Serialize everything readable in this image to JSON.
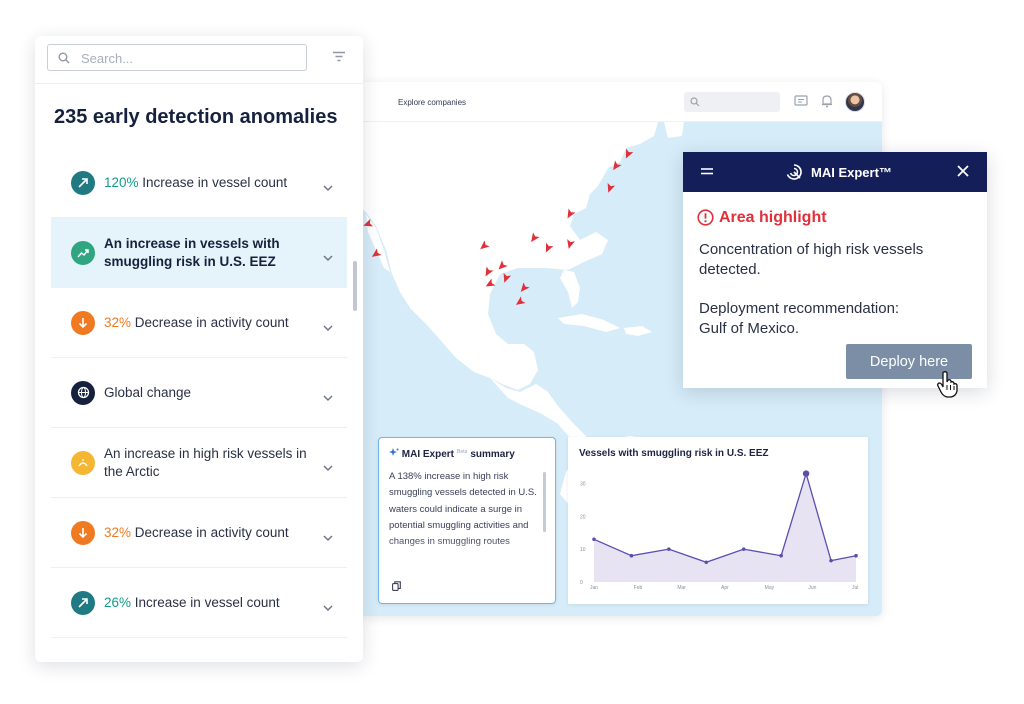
{
  "dashboard": {
    "nav_link": "Explore companies",
    "search_placeholder": ""
  },
  "panel": {
    "search_placeholder": "Search...",
    "title": "235 early detection anomalies",
    "items": [
      {
        "pct": "120%",
        "text": " Increase in vessel count",
        "pct_color": "green",
        "icon": "trend-up-icon",
        "icon_bg": "#1f7a84"
      },
      {
        "pct": "",
        "text": "An increase in vessels with smuggling risk in U.S. EEZ",
        "pct_color": "",
        "icon": "chart-up-icon",
        "icon_bg": "#2fa67f"
      },
      {
        "pct": "32%",
        "text": " Decrease in activity count",
        "pct_color": "orange",
        "icon": "trend-down-icon",
        "icon_bg": "#f07a22"
      },
      {
        "pct": "",
        "text": "Global change",
        "pct_color": "",
        "icon": "globe-icon",
        "icon_bg": "#16213e"
      },
      {
        "pct": "",
        "text": "An increase in high risk vessels in the Arctic",
        "pct_color": "",
        "icon": "sun-icon",
        "icon_bg": "#f5b733"
      },
      {
        "pct": "32%",
        "text": " Decrease in activity count",
        "pct_color": "orange",
        "icon": "trend-down-icon",
        "icon_bg": "#f07a22"
      },
      {
        "pct": "26%",
        "text": " Increase in vessel count",
        "pct_color": "green",
        "icon": "trend-up-icon",
        "icon_bg": "#1f7a84"
      }
    ]
  },
  "popup": {
    "title": "MAI Expert™",
    "alert_title": "Area highlight",
    "description": "Concentration of high risk vessels detected.",
    "rec_label": "Deployment recommendation:",
    "rec_value": "Gulf of Mexico.",
    "deploy_label": "Deploy here"
  },
  "summary": {
    "title_prefix": "MAI Expert",
    "beta": "Beta",
    "title_suffix": "summary",
    "body": "A 138% increase in high risk smuggling vessels detected in U.S. waters could indicate a surge in potential smuggling activities and changes in smuggling routes"
  },
  "colors": {
    "accent_navy": "#141f5a",
    "alert_red": "#e0313a",
    "green_pct": "#159b8a",
    "orange_pct": "#f07a22",
    "vessel_marker": "#e0313a",
    "chart_line": "#5a4fb0",
    "chart_fill": "#e7e3f3"
  },
  "chart_data": {
    "type": "area",
    "title": "Vessels with smuggling risk in U.S. EEZ",
    "xlabel": "",
    "ylabel": "",
    "x_ticks": [
      "Jan",
      "Feb",
      "Mar",
      "Apr",
      "May",
      "Jun",
      "Jul"
    ],
    "y_ticks": [
      "0",
      "10",
      "20",
      "30"
    ],
    "ylim": [
      0,
      35
    ],
    "grid": false,
    "x": [
      1,
      1.75,
      2.5,
      3.25,
      4,
      4.75,
      5.25,
      5.75,
      6.25
    ],
    "values": [
      13,
      8,
      10,
      6,
      10,
      8,
      33,
      6.5,
      8
    ],
    "highlight_index": 6
  }
}
